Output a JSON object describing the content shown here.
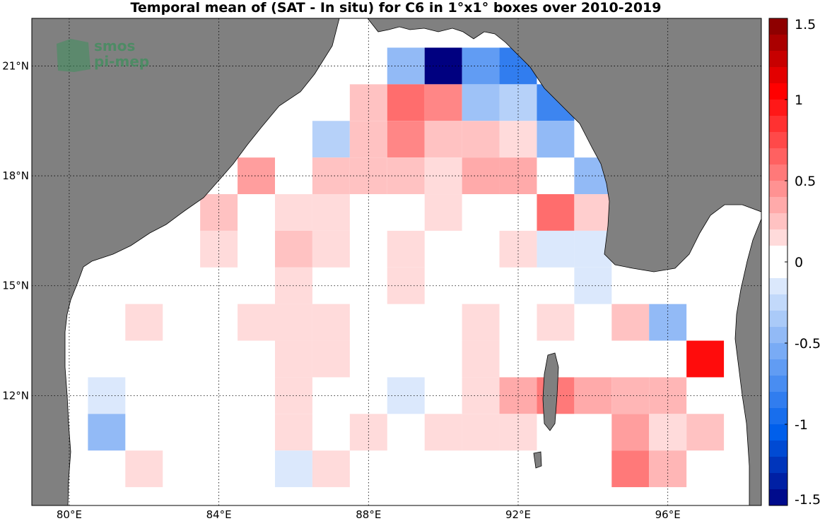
{
  "chart_data": {
    "type": "heatmap",
    "title": "Temporal mean of (SAT - In situ) for C6 in 1°x1° boxes over 2010-2019",
    "watermark": [
      "smos",
      "pi-mep"
    ],
    "xlim": [
      79,
      98.5
    ],
    "ylim": [
      9,
      22.3
    ],
    "x_ticks": [
      80,
      84,
      88,
      92,
      96
    ],
    "x_tick_labels": [
      "80°E",
      "84°E",
      "88°E",
      "92°E",
      "96°E"
    ],
    "y_ticks": [
      12,
      15,
      18,
      21
    ],
    "y_tick_labels": [
      "12°N",
      "15°N",
      "18°N",
      "21°N"
    ],
    "grid": true,
    "colorbar": {
      "range": [
        -1.5,
        1.5
      ],
      "ticks": [
        -1.5,
        -1,
        -0.5,
        0,
        0.5,
        1,
        1.5
      ],
      "tick_labels": [
        "-1.5",
        "-1",
        "-0.5",
        "0",
        "0.5",
        "1",
        "1.5"
      ],
      "levels": 30
    },
    "colors": {
      "land": "#808080",
      "ocean": "#ffffff"
    },
    "cells": [
      {
        "lon": 89,
        "lat": 21,
        "value": -0.45
      },
      {
        "lon": 90,
        "lat": 21,
        "value": -1.5
      },
      {
        "lon": 91,
        "lat": 21,
        "value": -0.65
      },
      {
        "lon": 92,
        "lat": 21,
        "value": -0.85
      },
      {
        "lon": 88,
        "lat": 20,
        "value": 0.25
      },
      {
        "lon": 89,
        "lat": 20,
        "value": 0.6
      },
      {
        "lon": 90,
        "lat": 20,
        "value": 0.5
      },
      {
        "lon": 91,
        "lat": 20,
        "value": -0.4
      },
      {
        "lon": 92,
        "lat": 20,
        "value": -0.3
      },
      {
        "lon": 93,
        "lat": 20,
        "value": -0.8
      },
      {
        "lon": 87,
        "lat": 19,
        "value": -0.3
      },
      {
        "lon": 88,
        "lat": 19,
        "value": 0.25
      },
      {
        "lon": 89,
        "lat": 19,
        "value": 0.5
      },
      {
        "lon": 90,
        "lat": 19,
        "value": 0.25
      },
      {
        "lon": 91,
        "lat": 19,
        "value": 0.25
      },
      {
        "lon": 92,
        "lat": 19,
        "value": 0.15
      },
      {
        "lon": 93,
        "lat": 19,
        "value": -0.45
      },
      {
        "lon": 85,
        "lat": 18,
        "value": 0.4
      },
      {
        "lon": 87,
        "lat": 18,
        "value": 0.25
      },
      {
        "lon": 88,
        "lat": 18,
        "value": 0.25
      },
      {
        "lon": 89,
        "lat": 18,
        "value": 0.25
      },
      {
        "lon": 90,
        "lat": 18,
        "value": 0.15
      },
      {
        "lon": 91,
        "lat": 18,
        "value": 0.35
      },
      {
        "lon": 92,
        "lat": 18,
        "value": 0.35
      },
      {
        "lon": 94,
        "lat": 18,
        "value": -0.45
      },
      {
        "lon": 84,
        "lat": 17,
        "value": 0.25
      },
      {
        "lon": 86,
        "lat": 17,
        "value": 0.15
      },
      {
        "lon": 87,
        "lat": 17,
        "value": 0.15
      },
      {
        "lon": 90,
        "lat": 17,
        "value": 0.15
      },
      {
        "lon": 93,
        "lat": 17,
        "value": 0.6
      },
      {
        "lon": 94,
        "lat": 17,
        "value": 0.2
      },
      {
        "lon": 84,
        "lat": 16,
        "value": 0.15
      },
      {
        "lon": 86,
        "lat": 16,
        "value": 0.25
      },
      {
        "lon": 87,
        "lat": 16,
        "value": 0.15
      },
      {
        "lon": 89,
        "lat": 16,
        "value": 0.15
      },
      {
        "lon": 92,
        "lat": 16,
        "value": 0.15
      },
      {
        "lon": 93,
        "lat": 16,
        "value": -0.15
      },
      {
        "lon": 94,
        "lat": 16,
        "value": -0.15
      },
      {
        "lon": 86,
        "lat": 15,
        "value": 0.15
      },
      {
        "lon": 89,
        "lat": 15,
        "value": 0.15
      },
      {
        "lon": 94,
        "lat": 15,
        "value": -0.15
      },
      {
        "lon": 82,
        "lat": 14,
        "value": 0.15
      },
      {
        "lon": 85,
        "lat": 14,
        "value": 0.15
      },
      {
        "lon": 86,
        "lat": 14,
        "value": 0.15
      },
      {
        "lon": 87,
        "lat": 14,
        "value": 0.15
      },
      {
        "lon": 91,
        "lat": 14,
        "value": 0.15
      },
      {
        "lon": 93,
        "lat": 14,
        "value": 0.15
      },
      {
        "lon": 95,
        "lat": 14,
        "value": 0.25
      },
      {
        "lon": 96,
        "lat": 14,
        "value": -0.45
      },
      {
        "lon": 86,
        "lat": 13,
        "value": 0.15
      },
      {
        "lon": 87,
        "lat": 13,
        "value": 0.15
      },
      {
        "lon": 91,
        "lat": 13,
        "value": 0.15
      },
      {
        "lon": 97,
        "lat": 13,
        "value": 1.0
      },
      {
        "lon": 81,
        "lat": 12,
        "value": -0.15
      },
      {
        "lon": 86,
        "lat": 12,
        "value": 0.15
      },
      {
        "lon": 89,
        "lat": 12,
        "value": -0.15
      },
      {
        "lon": 91,
        "lat": 12,
        "value": 0.15
      },
      {
        "lon": 92,
        "lat": 12,
        "value": 0.35
      },
      {
        "lon": 93,
        "lat": 12,
        "value": 0.55
      },
      {
        "lon": 94,
        "lat": 12,
        "value": 0.35
      },
      {
        "lon": 95,
        "lat": 12,
        "value": 0.3
      },
      {
        "lon": 96,
        "lat": 12,
        "value": 0.3
      },
      {
        "lon": 81,
        "lat": 11,
        "value": -0.45
      },
      {
        "lon": 86,
        "lat": 11,
        "value": 0.15
      },
      {
        "lon": 88,
        "lat": 11,
        "value": 0.15
      },
      {
        "lon": 90,
        "lat": 11,
        "value": 0.15
      },
      {
        "lon": 91,
        "lat": 11,
        "value": 0.15
      },
      {
        "lon": 92,
        "lat": 11,
        "value": 0.15
      },
      {
        "lon": 95,
        "lat": 11,
        "value": 0.4
      },
      {
        "lon": 96,
        "lat": 11,
        "value": 0.15
      },
      {
        "lon": 97,
        "lat": 11,
        "value": 0.25
      },
      {
        "lon": 82,
        "lat": 10,
        "value": 0.15
      },
      {
        "lon": 86,
        "lat": 10,
        "value": -0.15
      },
      {
        "lon": 87,
        "lat": 10,
        "value": 0.15
      },
      {
        "lon": 95,
        "lat": 10,
        "value": 0.55
      },
      {
        "lon": 96,
        "lat": 10,
        "value": 0.3
      }
    ]
  }
}
